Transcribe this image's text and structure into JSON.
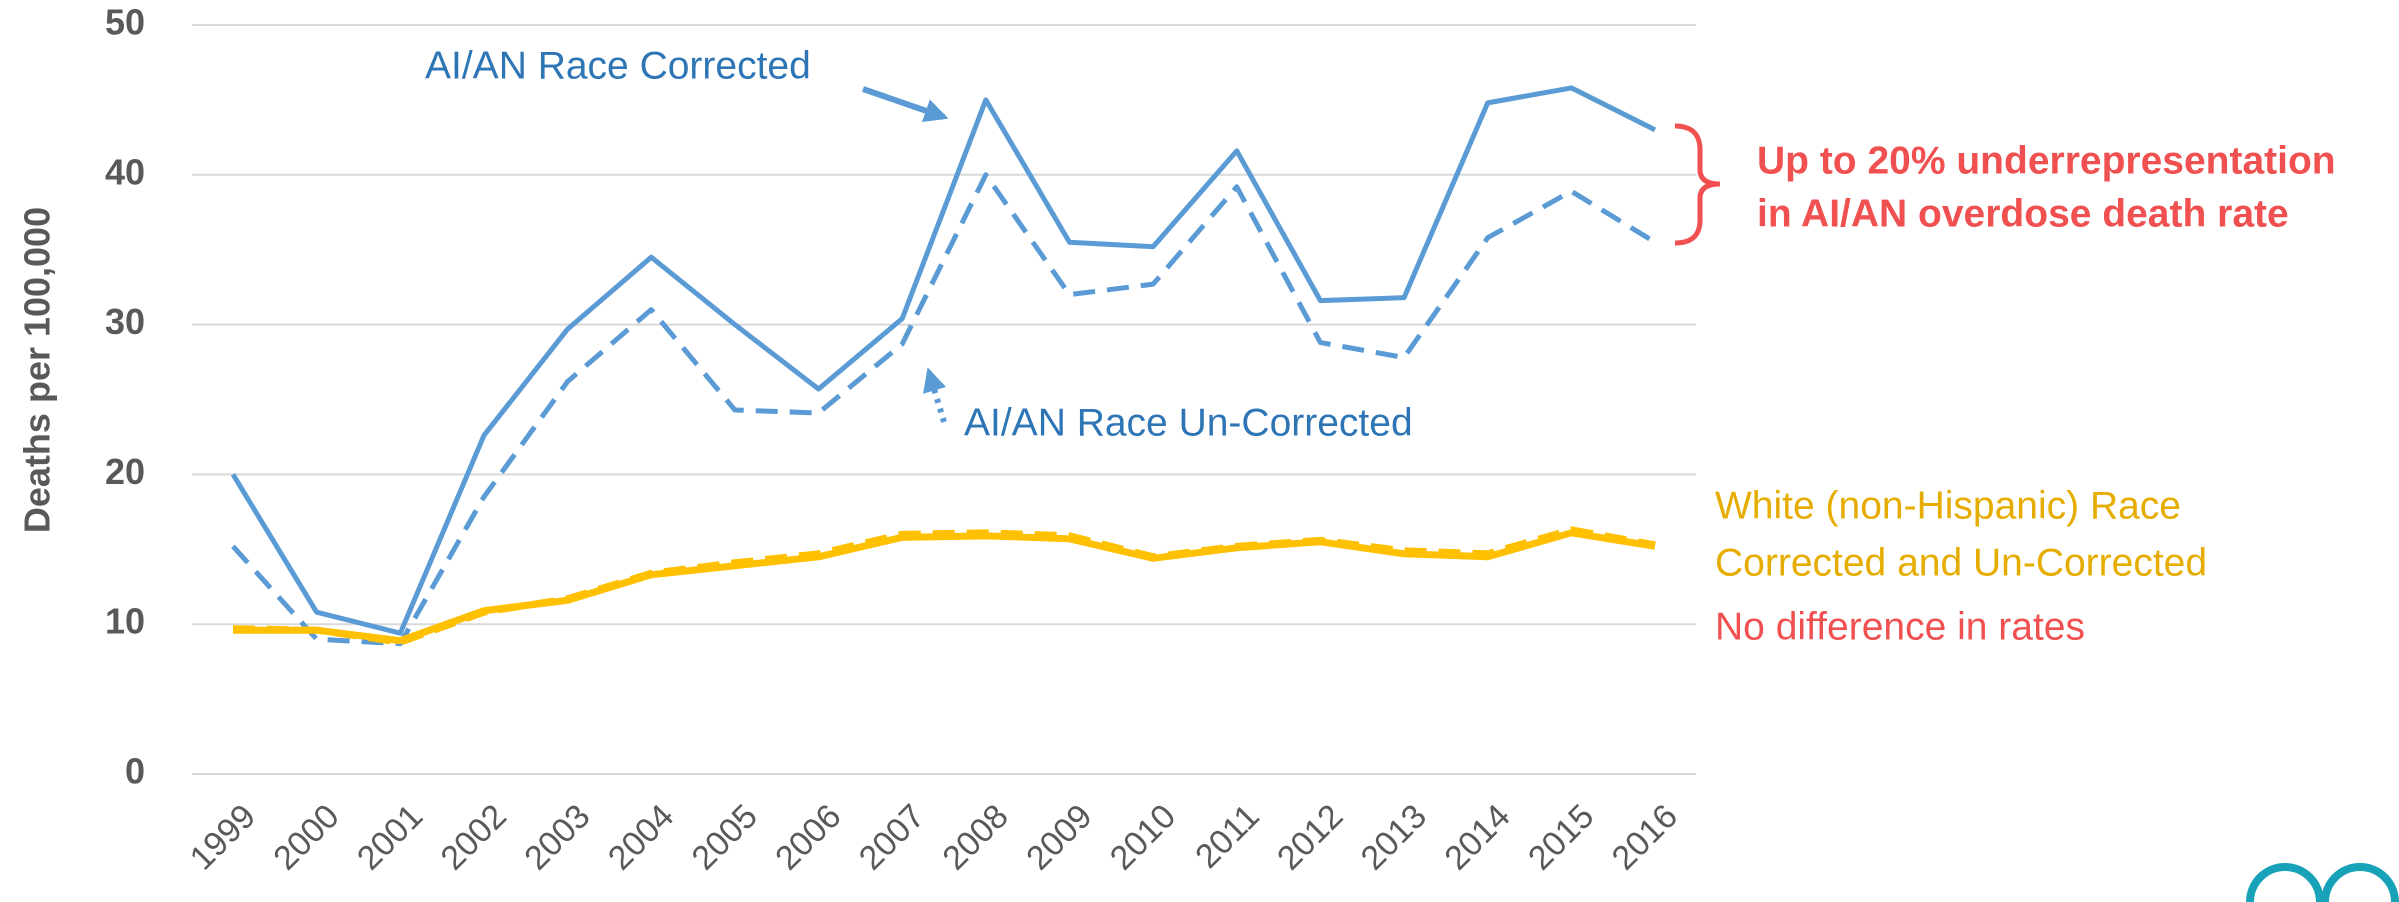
{
  "chart_data": {
    "type": "line",
    "y_label": "Deaths per 100,000",
    "categories": [
      "1999",
      "2000",
      "2001",
      "2002",
      "2003",
      "2004",
      "2005",
      "2006",
      "2007",
      "2008",
      "2009",
      "2010",
      "2011",
      "2012",
      "2013",
      "2014",
      "2015",
      "2016"
    ],
    "series": [
      {
        "color": "#5b9bd5",
        "dashed": false,
        "values": [
          20,
          10.8,
          9.4,
          22.6,
          29.7,
          34.5,
          30,
          25.7,
          30.4,
          45,
          35.5,
          35.2,
          41.6,
          31.6,
          31.8,
          44.8,
          45.8,
          43
        ]
      },
      {
        "color": "#5b9bd5",
        "dashed": true,
        "values": [
          15.2,
          9.0,
          8.7,
          18.5,
          26.2,
          31,
          24.3,
          24.1,
          28.7,
          40,
          32,
          32.7,
          39.2,
          28.8,
          27.8,
          35.8,
          38.9,
          35.5
        ]
      },
      {
        "color": "#ffc000",
        "dashed": false,
        "values": [
          9.6,
          9.6,
          8.9,
          10.9,
          11.6,
          13.3,
          13.9,
          14.5,
          15.8,
          15.9,
          15.7,
          14.4,
          15.1,
          15.5,
          14.7,
          14.5,
          16.1,
          15.2
        ]
      },
      {
        "color": "#ffc000",
        "dashed": true,
        "values": [
          9.7,
          9.6,
          8.8,
          10.8,
          11.7,
          13.4,
          14.1,
          14.7,
          16.0,
          16.1,
          15.9,
          14.5,
          15.2,
          15.6,
          14.9,
          14.7,
          16.3,
          15.3
        ]
      }
    ],
    "ylim": [
      0,
      50
    ],
    "yticks": [
      0,
      10,
      20,
      30,
      40,
      50
    ],
    "grid": true,
    "annotations": [
      "AI/AN Race Corrected",
      "AI/AN Race Un-Corrected",
      "White (non-Hispanic) Race",
      "Corrected and Un-Corrected",
      "No difference in rates",
      "Up to 20% underrepresentation",
      "in AI/AN overdose death rate"
    ]
  }
}
